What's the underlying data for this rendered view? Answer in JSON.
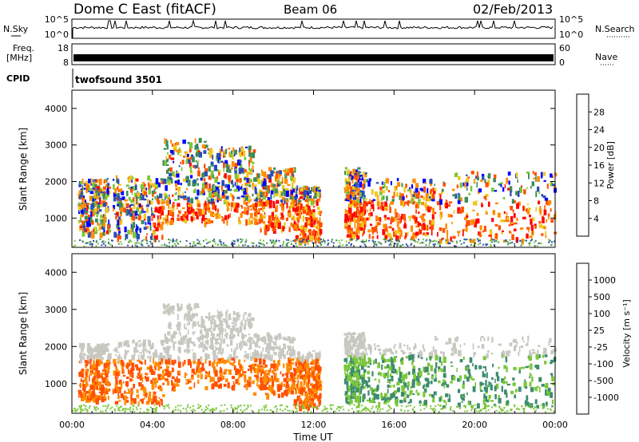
{
  "header": {
    "station": "Dome C East (fitACF)",
    "beam": "Beam 06",
    "date": "02/Feb/2013"
  },
  "nsky_panel": {
    "left_label": "N.Sky",
    "left_ticks": [
      "10^5",
      "10^0"
    ],
    "right_ticks": [
      "10^5",
      "10^0"
    ],
    "right_label": "N.Search"
  },
  "freq_panel": {
    "label_line1": "Freq.",
    "label_line2": "[MHz]",
    "left_ticks": [
      "18",
      "8"
    ],
    "right_ticks": [
      "60",
      "0"
    ],
    "right_label": "Nave"
  },
  "cpid_panel": {
    "label": "CPID",
    "value": "twofsound 3501"
  },
  "colors": {
    "power_scale": [
      "#0000ff",
      "#2a4fb4",
      "#3c8c5a",
      "#7cc83a",
      "#f0c820",
      "#ff8c00",
      "#ff5000",
      "#ff0000"
    ],
    "velocity_scale": [
      "#ff0000",
      "#ff5000",
      "#ff8c00",
      "#c8c8c0",
      "#c8c8c0",
      "#7cc83a",
      "#3c8c6e",
      "#2a4fb4"
    ]
  },
  "chart_data": [
    {
      "type": "heatmap",
      "title": "",
      "ylabel": "Slant Range [km]",
      "yticks": [
        1000,
        2000,
        3000,
        4000
      ],
      "ylim": [
        200,
        4500
      ],
      "xticks": [
        "00:00",
        "04:00",
        "08:00",
        "12:00",
        "16:00",
        "20:00",
        "00:00"
      ],
      "xlim_hours": [
        0,
        24
      ],
      "colorbar": {
        "label": "Power [dB]",
        "tick_labels": [
          "28",
          "24",
          "20",
          "16",
          "12",
          "8",
          "4"
        ],
        "range": [
          0,
          30
        ]
      }
    },
    {
      "type": "heatmap",
      "title": "",
      "xlabel": "Time UT",
      "ylabel": "Slant Range [km]",
      "yticks": [
        1000,
        2000,
        3000,
        4000
      ],
      "ylim": [
        200,
        4500
      ],
      "xticks": [
        "00:00",
        "04:00",
        "08:00",
        "12:00",
        "16:00",
        "20:00",
        "00:00"
      ],
      "xlim_hours": [
        0,
        24
      ],
      "colorbar": {
        "label": "Velocity [m s⁻¹]",
        "tick_labels": [
          "1000",
          "500",
          "100",
          "25",
          "-25",
          "-100",
          "-500",
          "-1000"
        ],
        "range": [
          -1000,
          1000
        ]
      }
    }
  ]
}
